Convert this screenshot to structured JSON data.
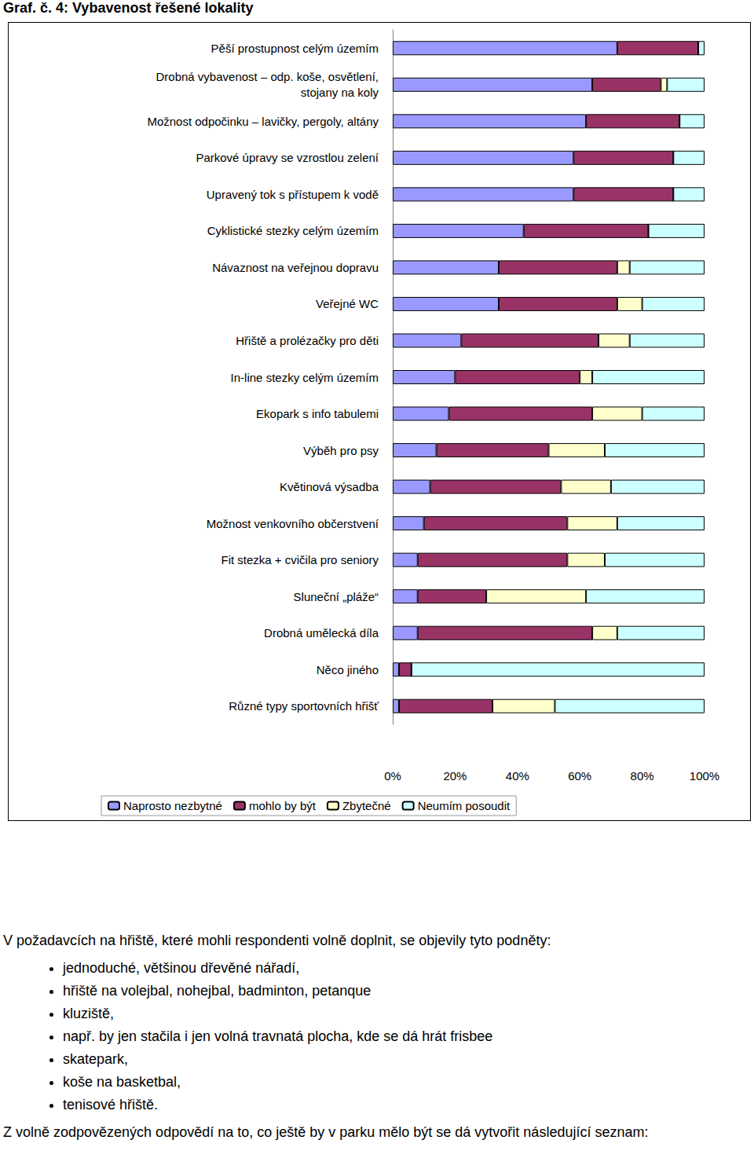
{
  "page_title": "Graf. č. 4: Vybavenost řešené lokality",
  "chart_data": {
    "type": "bar",
    "orientation": "horizontal",
    "stacked": true,
    "grid": false,
    "legend": "bottom",
    "data_labels": false,
    "categories": [
      "Pěší prostupnost celým územím",
      "Drobná vybavenost – odp. koše, osvětlení,\nstojany na koly",
      "Možnost odpočinku – lavičky, pergoly, altány",
      "Parkové úpravy se vzrostlou zelení",
      "Upravený tok s přístupem k vodě",
      "Cyklistické stezky celým územím",
      "Návaznost na veřejnou dopravu",
      "Veřejné WC",
      "Hřiště a prolézačky pro děti",
      "In-line stezky celým územím",
      "Ekopark s info tabulemi",
      "Výběh pro psy",
      "Květinová výsadba",
      "Možnost venkovního občerstvení",
      "Fit stezka + cvičila pro seniory",
      "Sluneční „pláže“",
      "Drobná umělecká díla",
      "Něco jiného",
      "Různé typy sportovních hřišť"
    ],
    "series": [
      {
        "name": "Naprosto nezbytné",
        "color": "#9999ff",
        "values": [
          72,
          64,
          62,
          58,
          58,
          42,
          34,
          34,
          22,
          20,
          18,
          14,
          12,
          10,
          8,
          8,
          8,
          2,
          2
        ]
      },
      {
        "name": "mohlo by být",
        "color": "#993366",
        "values": [
          26,
          22,
          30,
          32,
          32,
          40,
          38,
          38,
          44,
          40,
          46,
          36,
          42,
          46,
          48,
          22,
          56,
          4,
          30
        ]
      },
      {
        "name": "Zbytečné",
        "color": "#ffffcc",
        "values": [
          0,
          2,
          0,
          0,
          0,
          0,
          4,
          8,
          10,
          4,
          16,
          18,
          16,
          16,
          12,
          32,
          8,
          0,
          20
        ]
      },
      {
        "name": "Neumím posoudit",
        "color": "#ccffff",
        "values": [
          2,
          12,
          8,
          10,
          10,
          18,
          24,
          20,
          24,
          36,
          20,
          32,
          30,
          28,
          32,
          38,
          28,
          94,
          48
        ]
      }
    ],
    "xlim": [
      0,
      100
    ],
    "xticks": [
      {
        "value": 0,
        "label": "0%"
      },
      {
        "value": 20,
        "label": "20%"
      },
      {
        "value": 40,
        "label": "40%"
      },
      {
        "value": 60,
        "label": "60%"
      },
      {
        "value": 80,
        "label": "80%"
      },
      {
        "value": 100,
        "label": "100%"
      }
    ]
  },
  "text": {
    "intro": "V požadavcích na hřiště, které mohli respondenti volně doplnit, se objevily tyto podněty:",
    "items": [
      "jednoduché, většinou dřevěné nářadí,",
      "hřiště na volejbal, nohejbal, badminton, petanque",
      "kluziště,",
      "např. by jen stačila i jen volná travnatá plocha, kde se dá hrát frisbee",
      "skatepark,",
      "koše na basketbal,",
      "tenisové hřiště."
    ],
    "closing": "Z volně zodpovězených odpovědí na to, co ještě by v parku mělo být se dá vytvořit následující seznam:"
  }
}
